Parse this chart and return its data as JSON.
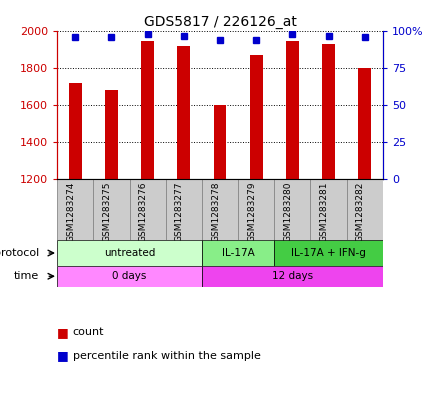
{
  "title": "GDS5817 / 226126_at",
  "samples": [
    "GSM1283274",
    "GSM1283275",
    "GSM1283276",
    "GSM1283277",
    "GSM1283278",
    "GSM1283279",
    "GSM1283280",
    "GSM1283281",
    "GSM1283282"
  ],
  "counts": [
    1720,
    1680,
    1950,
    1920,
    1600,
    1870,
    1950,
    1930,
    1800
  ],
  "percentile_ranks": [
    96,
    96,
    98,
    97,
    94,
    94,
    98,
    97,
    96
  ],
  "ylim_left": [
    1200,
    2000
  ],
  "ylim_right": [
    0,
    100
  ],
  "yticks_left": [
    1200,
    1400,
    1600,
    1800,
    2000
  ],
  "yticks_right": [
    0,
    25,
    50,
    75,
    100
  ],
  "ytick_right_labels": [
    "0",
    "25",
    "50",
    "75",
    "100%"
  ],
  "protocol_groups": [
    {
      "label": "untreated",
      "start": 0,
      "end": 4,
      "color": "#ccffcc"
    },
    {
      "label": "IL-17A",
      "start": 4,
      "end": 6,
      "color": "#88ee88"
    },
    {
      "label": "IL-17A + IFN-g",
      "start": 6,
      "end": 9,
      "color": "#44cc44"
    }
  ],
  "time_groups": [
    {
      "label": "0 days",
      "start": 0,
      "end": 4,
      "color": "#ff88ff"
    },
    {
      "label": "12 days",
      "start": 4,
      "end": 9,
      "color": "#ee44ee"
    }
  ],
  "bar_color": "#cc0000",
  "dot_color": "#0000cc",
  "bar_width": 0.35,
  "left_axis_color": "#cc0000",
  "right_axis_color": "#0000cc",
  "sample_bg_color": "#cccccc",
  "sample_border_color": "#888888"
}
